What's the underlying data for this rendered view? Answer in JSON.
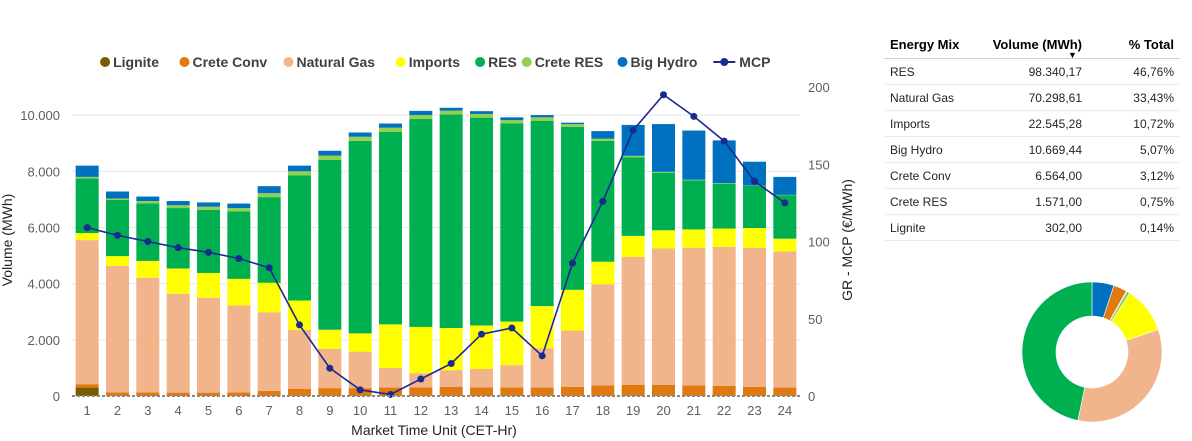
{
  "chart_data": {
    "type": "bar",
    "stacked": true,
    "xlabel": "Market Time Unit (CET-Hr)",
    "ylabel": "Volume (MWh)",
    "y2label": "GR - MCP (€/MWh)",
    "ylim": [
      0,
      11000
    ],
    "y2lim": [
      0,
      200
    ],
    "ytick_labels": [
      "0",
      "2.000",
      "4.000",
      "6.000",
      "8.000",
      "10.000"
    ],
    "y2tick_labels": [
      "0",
      "50",
      "100",
      "150",
      "200"
    ],
    "categories": [
      "1",
      "2",
      "3",
      "4",
      "5",
      "6",
      "7",
      "8",
      "9",
      "10",
      "11",
      "12",
      "13",
      "14",
      "15",
      "16",
      "17",
      "18",
      "19",
      "20",
      "21",
      "22",
      "23",
      "24"
    ],
    "legend_position": "top",
    "series": [
      {
        "name": "Lignite",
        "color": "#7a5c00",
        "values": [
          300,
          0,
          0,
          0,
          0,
          0,
          0,
          0,
          0,
          0,
          0,
          0,
          0,
          0,
          0,
          0,
          0,
          0,
          0,
          0,
          0,
          0,
          0,
          0
        ]
      },
      {
        "name": "Crete Conv",
        "color": "#e07a10",
        "values": [
          120,
          130,
          130,
          120,
          120,
          130,
          180,
          250,
          280,
          280,
          300,
          310,
          320,
          310,
          300,
          300,
          330,
          380,
          400,
          400,
          380,
          360,
          330,
          300
        ]
      },
      {
        "name": "Natural Gas",
        "color": "#f2b48a",
        "values": [
          5130,
          4500,
          4080,
          3520,
          3380,
          3090,
          2800,
          2100,
          1400,
          1300,
          700,
          500,
          600,
          650,
          800,
          1400,
          2000,
          3600,
          4550,
          4850,
          4900,
          4950,
          4950,
          4850
        ]
      },
      {
        "name": "Imports",
        "color": "#ffff00",
        "values": [
          250,
          350,
          600,
          900,
          880,
          950,
          1050,
          1050,
          680,
          650,
          1550,
          1650,
          1500,
          1550,
          1550,
          1500,
          1450,
          800,
          750,
          650,
          650,
          650,
          700,
          450
        ]
      },
      {
        "name": "RES",
        "color": "#00b050",
        "values": [
          1950,
          2000,
          2050,
          2150,
          2250,
          2400,
          3050,
          4450,
          6050,
          6850,
          6850,
          7400,
          7600,
          7400,
          7050,
          6600,
          5800,
          4300,
          2800,
          2050,
          1750,
          1600,
          1500,
          1550
        ]
      },
      {
        "name": "Crete RES",
        "color": "#92d050",
        "values": [
          50,
          50,
          80,
          100,
          110,
          120,
          140,
          150,
          150,
          150,
          150,
          140,
          140,
          130,
          120,
          120,
          100,
          80,
          50,
          30,
          20,
          20,
          10,
          10
        ]
      },
      {
        "name": "Big Hydro",
        "color": "#0070c0",
        "values": [
          400,
          250,
          160,
          150,
          150,
          160,
          250,
          200,
          170,
          150,
          150,
          150,
          100,
          100,
          100,
          80,
          50,
          270,
          1100,
          1700,
          1750,
          1520,
          850,
          640
        ]
      }
    ],
    "line": {
      "name": "MCP",
      "color": "#1a2a8f",
      "axis": "y2",
      "values": [
        109,
        104,
        100,
        96,
        93,
        89,
        83,
        46,
        18,
        4,
        1,
        11,
        21,
        40,
        44,
        26,
        86,
        126,
        172,
        195,
        181,
        165,
        139,
        125
      ]
    }
  },
  "energy_mix": {
    "headers": [
      "Energy Mix",
      "Volume (MWh)",
      "% Total"
    ],
    "sort_indicator": "▼",
    "rows": [
      {
        "name": "RES",
        "volume": "98.340,17",
        "pct": "46,76%",
        "share": 46.76,
        "color": "#00b050"
      },
      {
        "name": "Natural Gas",
        "volume": "70.298,61",
        "pct": "33,43%",
        "share": 33.43,
        "color": "#f2b48a"
      },
      {
        "name": "Imports",
        "volume": "22.545,28",
        "pct": "10,72%",
        "share": 10.72,
        "color": "#ffff00"
      },
      {
        "name": "Big Hydro",
        "volume": "10.669,44",
        "pct": "5,07%",
        "share": 5.07,
        "color": "#0070c0"
      },
      {
        "name": "Crete Conv",
        "volume": "6.564,00",
        "pct": "3,12%",
        "share": 3.12,
        "color": "#e07a10"
      },
      {
        "name": "Crete RES",
        "volume": "1.571,00",
        "pct": "0,75%",
        "share": 0.75,
        "color": "#92d050"
      },
      {
        "name": "Lignite",
        "volume": "302,00",
        "pct": "0,14%",
        "share": 0.14,
        "color": "#7a5c00"
      }
    ]
  }
}
